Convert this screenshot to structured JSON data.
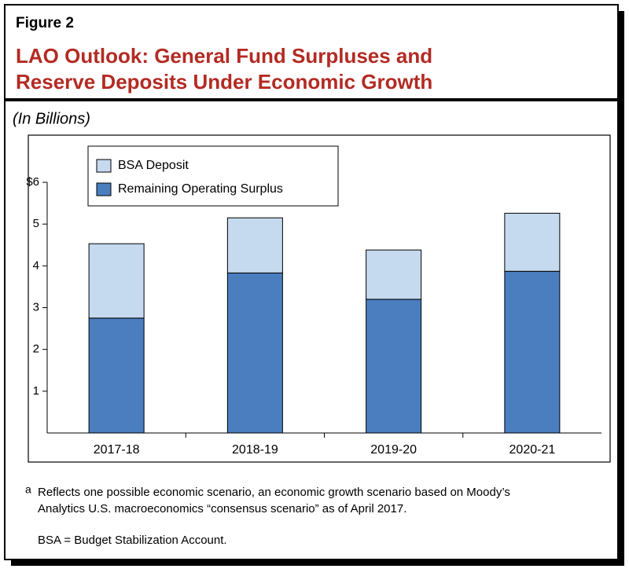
{
  "chart_data": {
    "type": "stacked_bar",
    "figure_label": "Figure 2",
    "title": [
      "LAO Outlook: General Fund Surpluses and",
      "Reserve Deposits Under Economic Growth"
    ],
    "subtitle": "(In Billions)",
    "categories": [
      "2017-18",
      "2018-19",
      "2019-20",
      "2020-21"
    ],
    "series": [
      {
        "name": "Remaining Operating Surplus",
        "color": "#4a7ebf",
        "values": [
          2.75,
          3.83,
          3.2,
          3.87
        ]
      },
      {
        "name": "BSA Deposit",
        "color": "#c5d9ef",
        "values": [
          1.78,
          1.32,
          1.18,
          1.39
        ]
      }
    ],
    "legend_order": [
      1,
      0
    ],
    "ylim": [
      0,
      6
    ],
    "yticks": [
      1,
      2,
      3,
      4,
      5,
      {
        "value": 6,
        "label": "$6"
      }
    ],
    "footnote_marker": "a",
    "footnote": [
      "Reflects one possible economic scenario, an economic growth scenario based on Moody’s",
      "Analytics U.S. macroeconomics “consensus scenario” as of April 2017."
    ],
    "note": "BSA = Budget Stabilization Account."
  }
}
